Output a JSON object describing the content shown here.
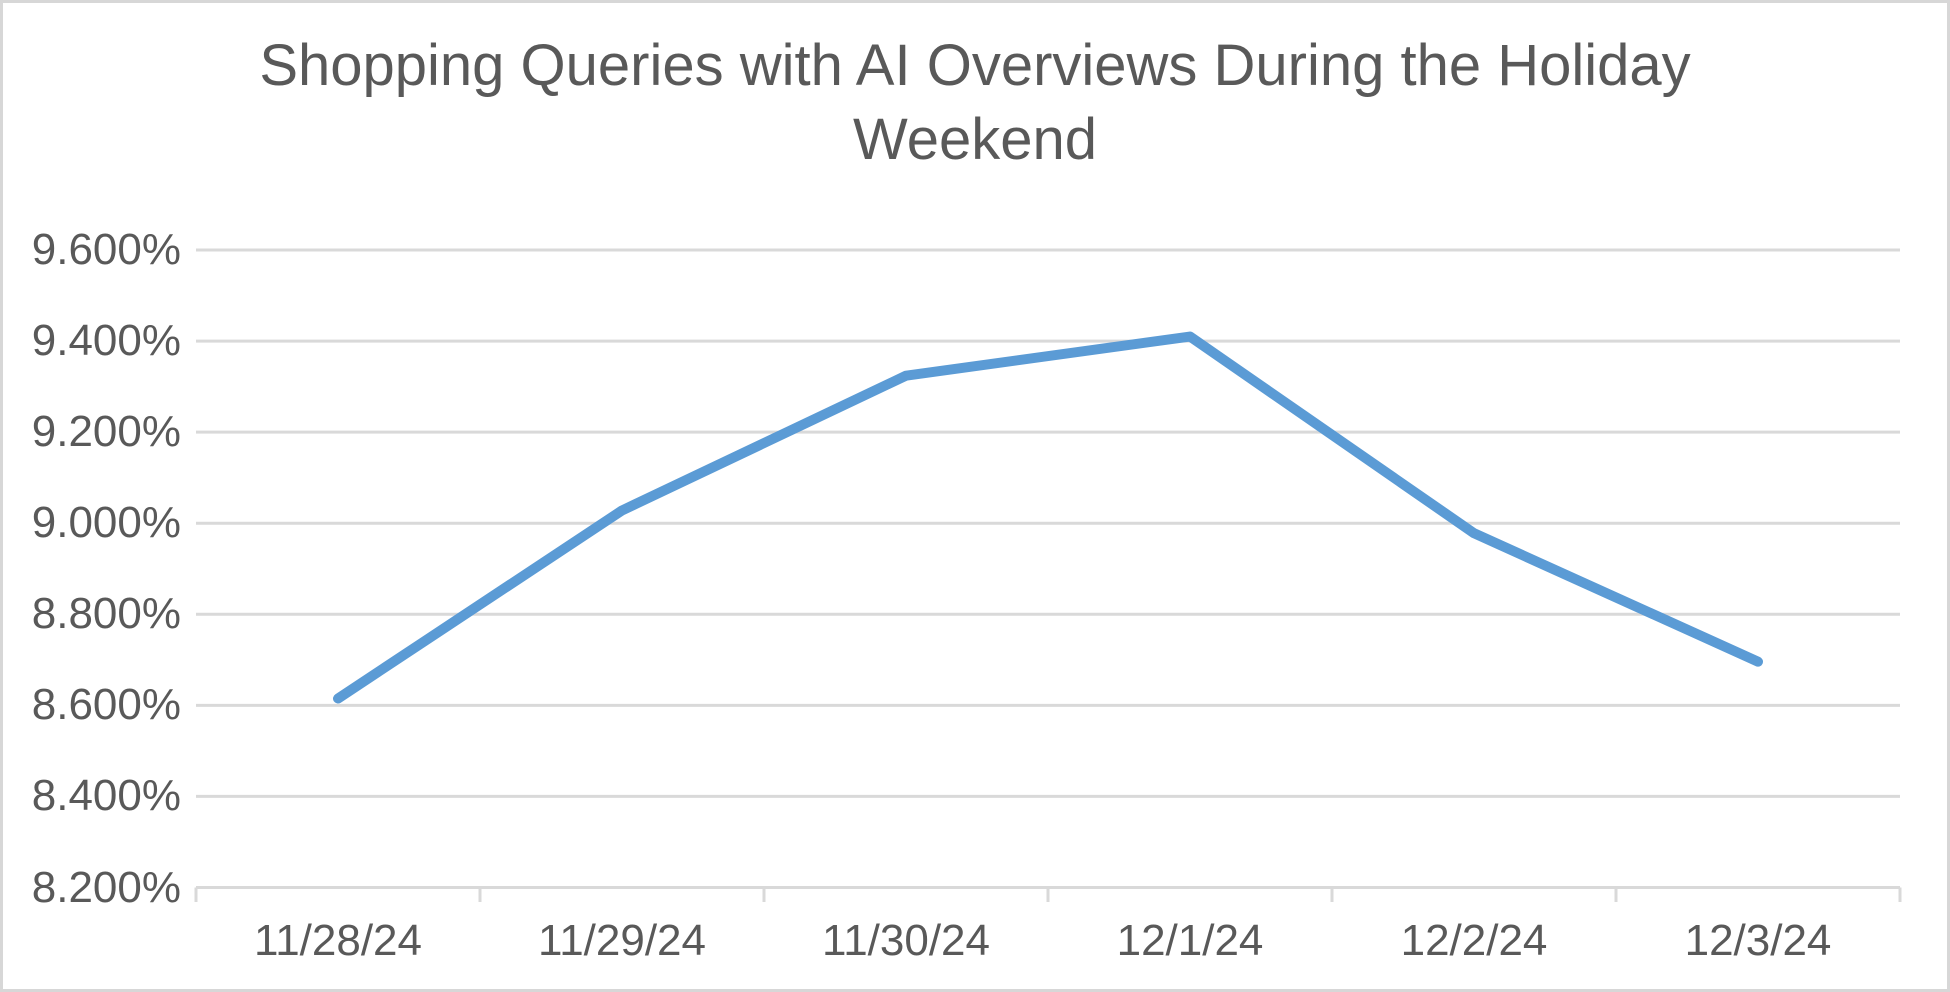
{
  "chart_data": {
    "type": "line",
    "title": "Shopping Queries with AI Overviews During the Holiday Weekend",
    "categories": [
      "11/28/24",
      "11/29/24",
      "11/30/24",
      "12/1/24",
      "12/2/24",
      "12/3/24"
    ],
    "series": [
      {
        "name": "Shopping queries with AI Overviews",
        "values": [
          8.615,
          9.028,
          9.324,
          9.41,
          8.978,
          8.696
        ]
      }
    ],
    "unit": "%",
    "xlabel": "",
    "ylabel": "",
    "ylim": [
      8.2,
      9.6
    ],
    "ytick_step": 0.2,
    "ytick_labels": [
      "9.600%",
      "9.400%",
      "9.200%",
      "9.000%",
      "8.800%",
      "8.600%",
      "8.400%",
      "8.200%"
    ],
    "grid": true,
    "legend_position": "none",
    "markers": false,
    "colors": {
      "line": "#5B9BD5",
      "gridline": "#D9D9D9",
      "axis_line": "#D9D9D9",
      "text": "#595959",
      "background": "#FFFFFF",
      "frame_border": "#D7D7D7"
    }
  }
}
